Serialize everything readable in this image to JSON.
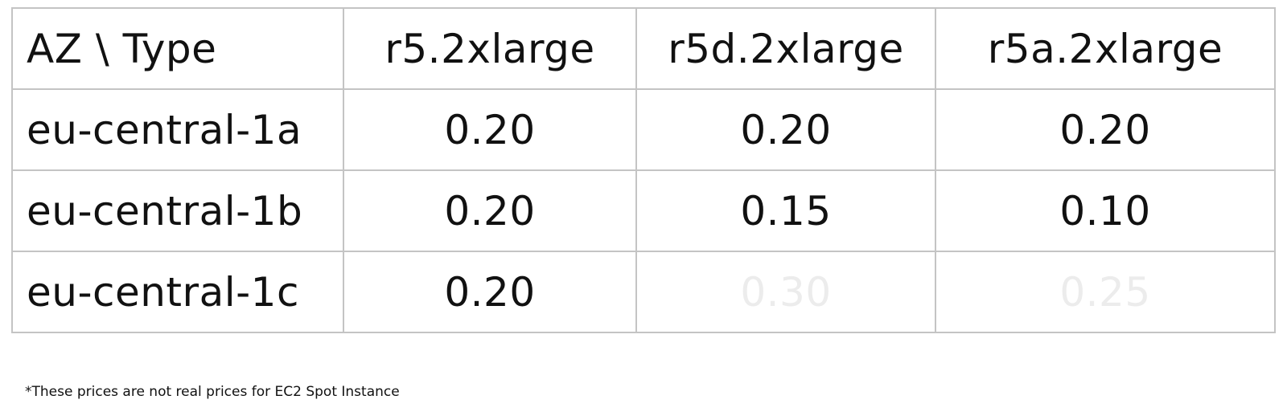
{
  "table": {
    "corner_header": "AZ \\ Type",
    "columns": [
      "r5.2xlarge",
      "r5d.2xlarge",
      "r5a.2xlarge"
    ],
    "rows": [
      {
        "az": "eu-central-1a",
        "prices": [
          "0.20",
          "0.20",
          "0.20"
        ]
      },
      {
        "az": "eu-central-1b",
        "prices": [
          "0.20",
          "0.15",
          "0.10"
        ]
      },
      {
        "az": "eu-central-1c",
        "prices": [
          "0.20",
          "0.30",
          "0.25"
        ],
        "faded_columns": [
          1,
          2
        ]
      }
    ]
  },
  "colors": {
    "text": "#111111",
    "border": "#c4c4c4",
    "faded_text": "#ececec"
  },
  "footnote": "*These prices are not real prices for EC2 Spot Instance"
}
